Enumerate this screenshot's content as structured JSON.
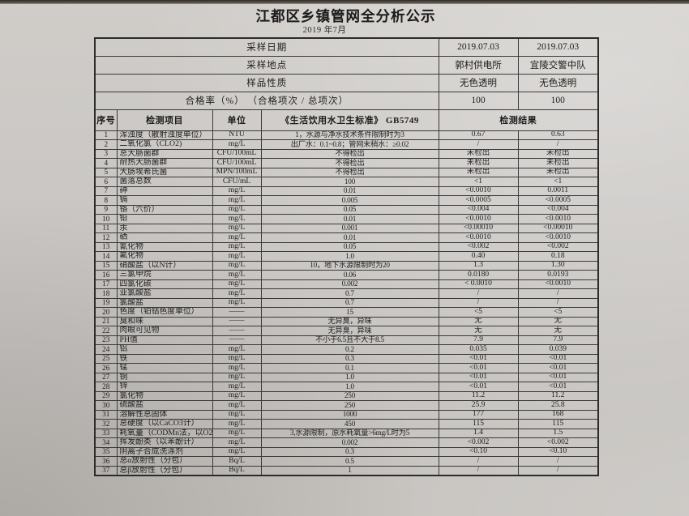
{
  "page": {
    "title": "江都区乡镇管网全分析公示",
    "subtitle": "2019 年7月"
  },
  "info": {
    "rows": [
      {
        "label": "采样日期",
        "v1": "2019.07.03",
        "v2": "2019.07.03"
      },
      {
        "label": "采样地点",
        "v1": "郭村供电所",
        "v2": "宜陵交警中队"
      },
      {
        "label": "样品性质",
        "v1": "无色透明",
        "v2": "无色透明"
      },
      {
        "label": "合格率（%） （合格项次 / 总项次）",
        "v1": "100",
        "v2": "100"
      }
    ]
  },
  "columns": {
    "no": "序号",
    "item": "检测项目",
    "unit": "单位",
    "standard": "《生活饮用水卫生标准》 GB5749",
    "result": "检测结果"
  },
  "table": {
    "rows": [
      {
        "no": "1",
        "item": "浑浊度（散射浊度单位）",
        "unit": "NTU",
        "standard": "1，水源与净水技术条件限制时为3",
        "r1": "0.67",
        "r2": "0.63"
      },
      {
        "no": "2",
        "item": "二氧化氯（CLO2)",
        "unit": "mg/L",
        "standard": "出厂水：0.1~0.8；管网末稍水：≥0.02",
        "r1": "/",
        "r2": "/"
      },
      {
        "no": "3",
        "item": "总大肠菌群",
        "unit": "CFU/100mL",
        "standard": "不得检出",
        "r1": "未检出",
        "r2": "未检出"
      },
      {
        "no": "4",
        "item": "耐热大肠菌群",
        "unit": "CFU/100mL",
        "standard": "不得检出",
        "r1": "未检出",
        "r2": "未检出"
      },
      {
        "no": "5",
        "item": "大肠埃希氏菌",
        "unit": "MPN/100mL",
        "standard": "不得检出",
        "r1": "未检出",
        "r2": "未检出"
      },
      {
        "no": "6",
        "item": "菌落总数",
        "unit": "CFU/mL",
        "standard": "100",
        "r1": "<1",
        "r2": "<1"
      },
      {
        "no": "7",
        "item": "砷",
        "unit": "mg/L",
        "standard": "0.01",
        "r1": "<0.0010",
        "r2": "0.0011"
      },
      {
        "no": "8",
        "item": "镉",
        "unit": "mg/L",
        "standard": "0.005",
        "r1": "<0.0005",
        "r2": "<0.0005"
      },
      {
        "no": "9",
        "item": "铬（六价）",
        "unit": "mg/L",
        "standard": "0.05",
        "r1": "<0.004",
        "r2": "<0.004"
      },
      {
        "no": "10",
        "item": "铅",
        "unit": "mg/L",
        "standard": "0.01",
        "r1": "<0.0010",
        "r2": "<0.0010"
      },
      {
        "no": "11",
        "item": "汞",
        "unit": "mg/L",
        "standard": "0.001",
        "r1": "<0.00010",
        "r2": "<0.00010"
      },
      {
        "no": "12",
        "item": "硒",
        "unit": "mg/L",
        "standard": "0.01",
        "r1": "<0.0010",
        "r2": "<0.0010"
      },
      {
        "no": "13",
        "item": "氰化物",
        "unit": "mg/L",
        "standard": "0.05",
        "r1": "<0.002",
        "r2": "<0.002"
      },
      {
        "no": "14",
        "item": "氟化物",
        "unit": "mg/L",
        "standard": "1.0",
        "r1": "0.40",
        "r2": "0.18"
      },
      {
        "no": "15",
        "item": "硝酸盐（以N计）",
        "unit": "mg/L",
        "standard": "10，地下水源限制时为20",
        "r1": "1.3",
        "r2": "1.30"
      },
      {
        "no": "16",
        "item": "三氯甲烷",
        "unit": "mg/L",
        "standard": "0.06",
        "r1": "0.0180",
        "r2": "0.0193"
      },
      {
        "no": "17",
        "item": "四氯化碳",
        "unit": "mg/L",
        "standard": "0.002",
        "r1": "< 0.0010",
        "r2": "<0.0010"
      },
      {
        "no": "18",
        "item": "亚氯酸盐",
        "unit": "mg/L",
        "standard": "0.7",
        "r1": "/",
        "r2": "/"
      },
      {
        "no": "19",
        "item": "氯酸盐",
        "unit": "mg/L",
        "standard": "0.7",
        "r1": "/",
        "r2": "/"
      },
      {
        "no": "20",
        "item": "色度（铂钴色度单位）",
        "unit": "——",
        "standard": "15",
        "r1": "<5",
        "r2": "<5"
      },
      {
        "no": "21",
        "item": "臭和味",
        "unit": "——",
        "standard": "无异臭，异味",
        "r1": "无",
        "r2": "无"
      },
      {
        "no": "22",
        "item": "肉眼可见物",
        "unit": "——",
        "standard": "无异臭，异味",
        "r1": "无",
        "r2": "无"
      },
      {
        "no": "23",
        "item": "PH值",
        "unit": "——",
        "standard": "不小于6.5且不大于8.5",
        "r1": "7.9",
        "r2": "7.9"
      },
      {
        "no": "24",
        "item": "铝",
        "unit": "mg/L",
        "standard": "0.2",
        "r1": "0.035",
        "r2": "0.039"
      },
      {
        "no": "25",
        "item": "铁",
        "unit": "mg/L",
        "standard": "0.3",
        "r1": "<0.01",
        "r2": "<0.01"
      },
      {
        "no": "26",
        "item": "锰",
        "unit": "mg/L",
        "standard": "0.1",
        "r1": "<0.01",
        "r2": "<0.01"
      },
      {
        "no": "27",
        "item": "铜",
        "unit": "mg/L",
        "standard": "1.0",
        "r1": "<0.01",
        "r2": "<0.01"
      },
      {
        "no": "28",
        "item": "锌",
        "unit": "mg/L",
        "standard": "1.0",
        "r1": "<0.01",
        "r2": "<0.01"
      },
      {
        "no": "29",
        "item": "氯化物",
        "unit": "mg/L",
        "standard": "250",
        "r1": "11.2",
        "r2": "11.2"
      },
      {
        "no": "30",
        "item": "硫酸盐",
        "unit": "mg/L",
        "standard": "250",
        "r1": "25.9",
        "r2": "25.8"
      },
      {
        "no": "31",
        "item": "溶解性总固体",
        "unit": "mg/L",
        "standard": "1000",
        "r1": "177",
        "r2": "168"
      },
      {
        "no": "32",
        "item": "总硬度（以CaCO3计）",
        "unit": "mg/L",
        "standard": "450",
        "r1": "115",
        "r2": "115"
      },
      {
        "no": "33",
        "item": "耗氧量（CODMn法，以O2计）",
        "unit": "mg/L",
        "standard": "3,水源限制，原水耗氧量>6mg/L时为5",
        "r1": "1.4",
        "r2": "1.5"
      },
      {
        "no": "34",
        "item": "挥发酚类（以苯酚计）",
        "unit": "mg/L",
        "standard": "0.002",
        "r1": "<0.002",
        "r2": "<0.002"
      },
      {
        "no": "35",
        "item": "阴离子合成洗涤剂",
        "unit": "mg/L",
        "standard": "0.3",
        "r1": "<0.10",
        "r2": "<0.10"
      },
      {
        "no": "36",
        "item": "总α放射性（分包）",
        "unit": "Bq/L",
        "standard": "0.5",
        "r1": "/",
        "r2": "/"
      },
      {
        "no": "37",
        "item": "总β放射性（分包）",
        "unit": "Bq/L",
        "standard": "1",
        "r1": "/",
        "r2": "/"
      }
    ]
  }
}
